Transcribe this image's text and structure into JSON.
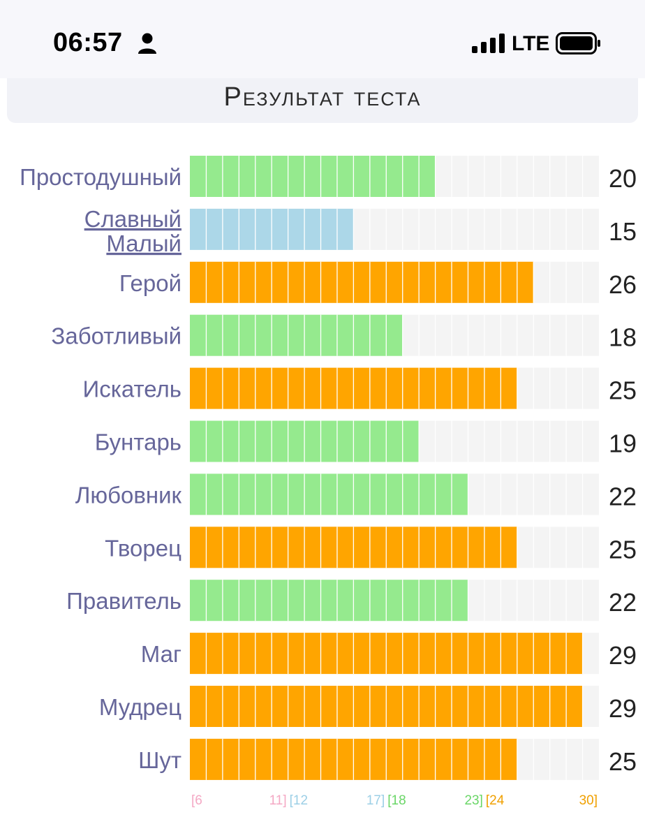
{
  "status_bar": {
    "time": "06:57",
    "network": "LTE",
    "icons": [
      "person-icon",
      "signal-bars-icon",
      "battery-icon"
    ]
  },
  "header": {
    "title": "Результат теста"
  },
  "colors": {
    "green": "#95ea8e",
    "blue": "#acd7e8",
    "orange": "#ffa500",
    "track": "#f4f4f4",
    "label": "#66669a",
    "value": "#222222",
    "range_pink": "#f4a8c4",
    "range_blue": "#9ccfe6",
    "range_green": "#6ad667",
    "range_orange": "#f0a000"
  },
  "chart_data": {
    "type": "bar",
    "orientation": "horizontal",
    "categories": [
      "Простодушный",
      "Славный Малый",
      "Герой",
      "Заботливый",
      "Искатель",
      "Бунтарь",
      "Любовник",
      "Творец",
      "Правитель",
      "Маг",
      "Мудрец",
      "Шут"
    ],
    "values": [
      20,
      15,
      26,
      18,
      25,
      19,
      22,
      25,
      22,
      29,
      29,
      25
    ],
    "xlim": [
      6,
      30
    ],
    "link_category": "Славный Малый",
    "ranges": [
      {
        "start_label": "[6",
        "end_label": "11]",
        "start": 6,
        "end": 11,
        "color": "pink"
      },
      {
        "start_label": "[12",
        "end_label": "17]",
        "start": 12,
        "end": 17,
        "color": "blue"
      },
      {
        "start_label": "[18",
        "end_label": "23]",
        "start": 18,
        "end": 23,
        "color": "green"
      },
      {
        "start_label": "[24",
        "end_label": "30]",
        "start": 24,
        "end": 30,
        "color": "orange"
      }
    ]
  }
}
